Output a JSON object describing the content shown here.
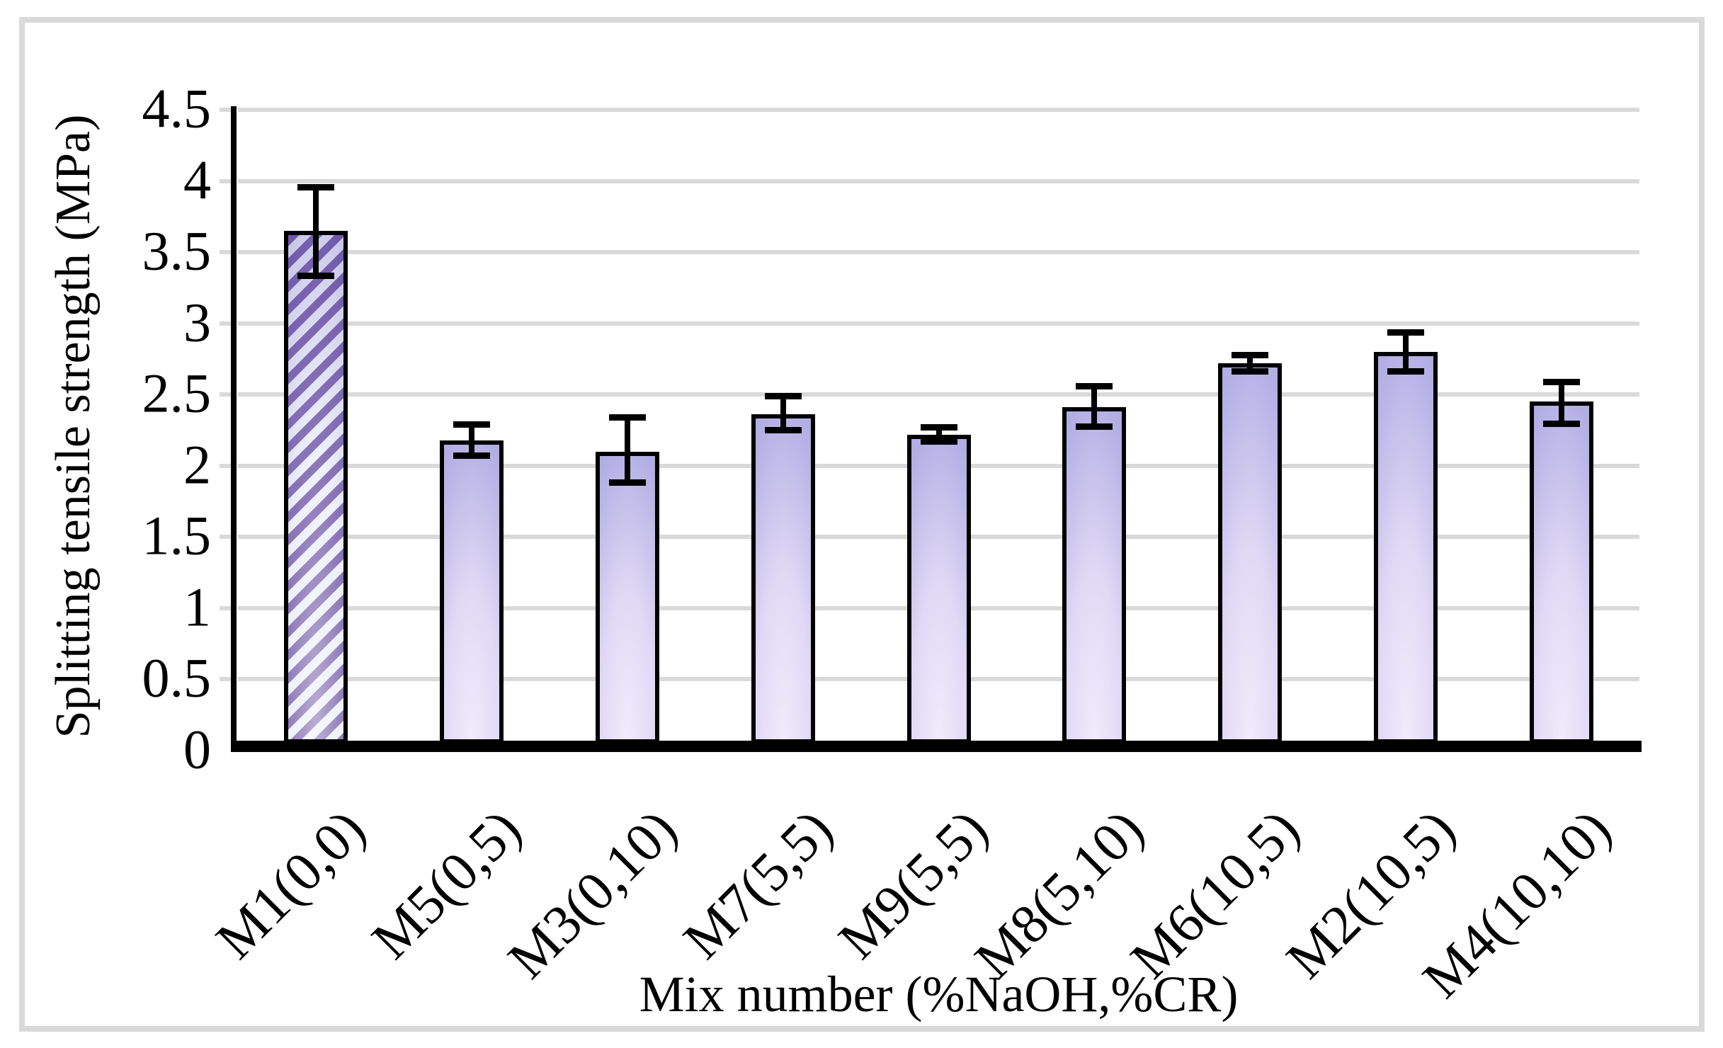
{
  "chart_data": {
    "type": "bar",
    "title": "",
    "xlabel": "Mix number (%NaOH,%CR)",
    "ylabel": "Splitting tensile strength (MPa)",
    "ylim": [
      0,
      4.5
    ],
    "ytick_values": [
      4.5,
      4,
      3.5,
      3,
      2.5,
      2,
      1.5,
      1,
      0.5,
      0
    ],
    "ytick_labels": [
      "4.5",
      "4",
      "3.5",
      "3",
      "2.5",
      "2",
      "1.5",
      "1",
      "0.5",
      "0"
    ],
    "grid": "horizontal",
    "legend": "none",
    "categories": [
      "M1(0,0)",
      "M5(0,5)",
      "M3(0,10)",
      "M7(5,5)",
      "M9(5,5)",
      "M8(5,10)",
      "M6(10,5)",
      "M2(10,5)",
      "M4(10,10)"
    ],
    "values": [
      3.65,
      2.18,
      2.1,
      2.36,
      2.22,
      2.41,
      2.72,
      2.8,
      2.45
    ],
    "error_bars": {
      "low": [
        3.32,
        2.06,
        1.87,
        2.24,
        2.16,
        2.26,
        2.65,
        2.65,
        2.28
      ],
      "high": [
        3.97,
        2.3,
        2.35,
        2.5,
        2.28,
        2.57,
        2.79,
        2.95,
        2.6
      ]
    },
    "bar_styles": [
      "hatched-diagonal",
      "gradient",
      "gradient",
      "gradient",
      "gradient",
      "gradient",
      "gradient",
      "gradient",
      "gradient"
    ],
    "colors": {
      "background": "#ffffff",
      "figure_border": "#d9d9d9",
      "gridline": "#d9d9d9",
      "axis": "#000000",
      "bar_border": "#000000",
      "bar_gradient_edge": "#9aa0d8",
      "bar_gradient_light": "#f1ebfc",
      "hatch_stripe": "#6b4fa4",
      "hatch_background": "#e9edf9"
    }
  }
}
